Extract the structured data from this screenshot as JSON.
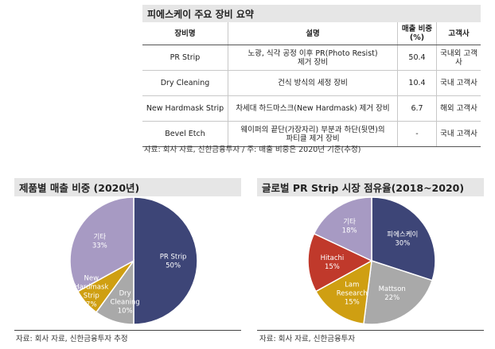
{
  "summary": {
    "title": "피에스케이 주요 장비 요약",
    "headers": {
      "equipment": "장비명",
      "description": "설명",
      "share": [
        "매출 비중",
        "(%)"
      ],
      "customer": "고객사"
    },
    "rows": [
      {
        "equipment": "PR Strip",
        "description": [
          "노광, 식각 공정 이후 PR(Photo Resist)",
          "제거 장비"
        ],
        "share": "50.4",
        "customer": "국내외 고객사"
      },
      {
        "equipment": "Dry Cleaning",
        "description": [
          "건식 방식의 세정 장비"
        ],
        "share": "10.4",
        "customer": "국내 고객사"
      },
      {
        "equipment": "New Hardmask Strip",
        "description": [
          "차세대 하드마스크(New Hardmask) 제거 장비"
        ],
        "share": "6.7",
        "customer": "해외 고객사"
      },
      {
        "equipment": "Bevel Etch",
        "description": [
          "웨이퍼의 끝단(가장자리) 부분과 하단(뒷면)의",
          "파티클 제거 장비"
        ],
        "share": "-",
        "customer": "국내 고객사"
      }
    ],
    "source": "자료: 회사 자료, 신한금융투자 / 주: 매출 비중은 2020년 기준(추정)"
  },
  "chart_left": {
    "title": "제품별 매출 비중 (2020년)",
    "source": "자료: 회사 자료, 신한금융투자 추정"
  },
  "chart_right": {
    "title": "글로벌 PR Strip 시장 점유율(2018~2020)",
    "source": "자료: 회사 자료, 신한금융투자"
  },
  "chart_data": [
    {
      "type": "pie",
      "title": "제품별 매출 비중 (2020년)",
      "slices": [
        {
          "label": [
            "PR Strip"
          ],
          "value": 50,
          "pct_label": "50%",
          "color": "#3d4577"
        },
        {
          "label": [
            "Dry",
            "Cleaning"
          ],
          "value": 10,
          "pct_label": "10%",
          "color": "#a9a9a9"
        },
        {
          "label": [
            "New",
            "Hardmask",
            "Strip"
          ],
          "value": 7,
          "pct_label": "7%",
          "color": "#cf9f12"
        },
        {
          "label": [
            "기타"
          ],
          "value": 33,
          "pct_label": "33%",
          "color": "#a79ac3"
        }
      ]
    },
    {
      "type": "pie",
      "title": "글로벌 PR Strip 시장 점유율(2018~2020)",
      "slices": [
        {
          "label": [
            "피에스케이"
          ],
          "value": 30,
          "pct_label": "30%",
          "color": "#3d4577"
        },
        {
          "label": [
            "Mattson"
          ],
          "value": 22,
          "pct_label": "22%",
          "color": "#a9a9a9"
        },
        {
          "label": [
            "Lam",
            "Research"
          ],
          "value": 15,
          "pct_label": "15%",
          "color": "#cf9f12"
        },
        {
          "label": [
            "Hitachi"
          ],
          "value": 15,
          "pct_label": "15%",
          "color": "#c0392b"
        },
        {
          "label": [
            "기타"
          ],
          "value": 18,
          "pct_label": "18%",
          "color": "#a79ac3"
        }
      ]
    }
  ]
}
